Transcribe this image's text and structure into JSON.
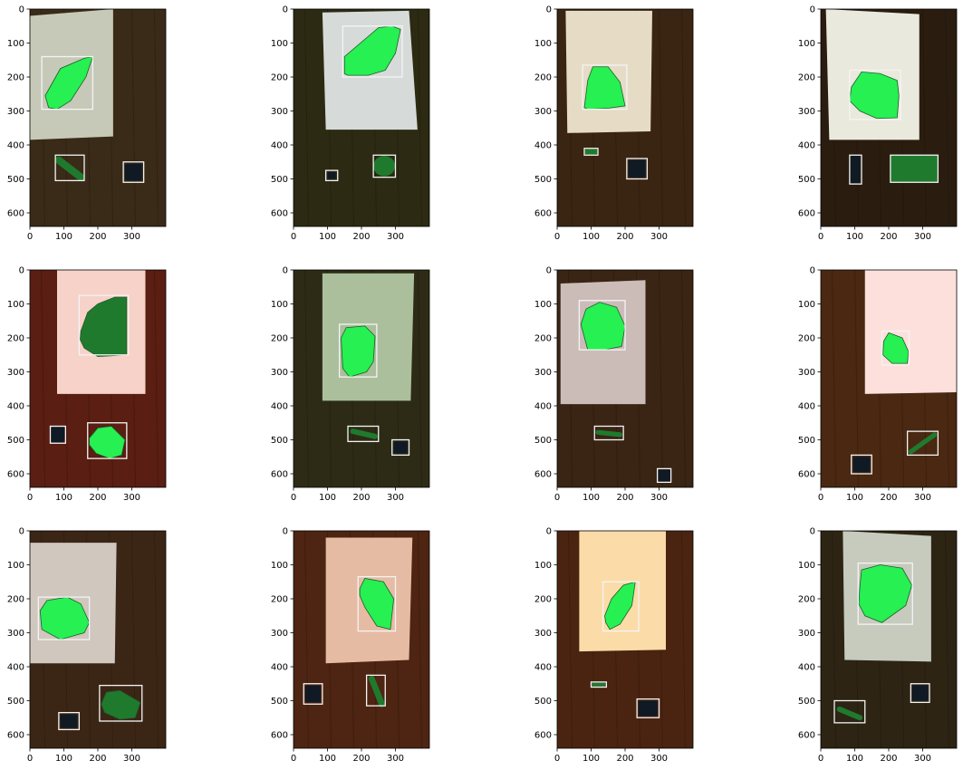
{
  "figure": {
    "x_ticks": [
      "0",
      "100",
      "200",
      "300"
    ],
    "y_ticks": [
      "0",
      "100",
      "200",
      "300",
      "400",
      "500",
      "600"
    ],
    "colors": {
      "background": "#ffffff",
      "bbox": "#f4f4f4",
      "mask_bright": "#27f052",
      "mask_dark": "#1f7a2e"
    }
  },
  "panels": [
    {
      "bg": "#3a2a18",
      "paper": {
        "color": "#c6c9b8"
      },
      "objects": [
        "leaf-large",
        "leaf-stem",
        "coin"
      ]
    },
    {
      "bg": "#2c2a12",
      "paper": {
        "color": "#d6dbd9"
      },
      "objects": [
        "leaf-large",
        "coin",
        "leaf-small"
      ]
    },
    {
      "bg": "#3a2512",
      "paper": {
        "color": "#e6dcc6"
      },
      "objects": [
        "leaf-large",
        "leaf-stem",
        "coin"
      ]
    },
    {
      "bg": "#2a1d10",
      "paper": {
        "color": "#eae9dd"
      },
      "objects": [
        "leaf-large",
        "coin",
        "tag"
      ]
    },
    {
      "bg": "#5a1e12",
      "paper": {
        "color": "#f7d2c8"
      },
      "objects": [
        "leaf-large",
        "coin",
        "leaf-small"
      ]
    },
    {
      "bg": "#2d2b16",
      "paper": {
        "color": "#abbf9c"
      },
      "objects": [
        "leaf-large",
        "leaf-stem",
        "coin"
      ]
    },
    {
      "bg": "#3a2414",
      "paper": {
        "color": "#ccbcb8"
      },
      "objects": [
        "leaf-large",
        "leaf-stem",
        "coin"
      ]
    },
    {
      "bg": "#4a2812",
      "paper": {
        "color": "#fde0dc"
      },
      "objects": [
        "leaf-large",
        "coin",
        "leaf-stem"
      ]
    },
    {
      "bg": "#3b2616",
      "paper": {
        "color": "#d0c7be"
      },
      "objects": [
        "leaf-large",
        "coin",
        "leaf-small"
      ]
    },
    {
      "bg": "#4e2412",
      "paper": {
        "color": "#e6bba4"
      },
      "objects": [
        "leaf-large",
        "coin",
        "leaf-stem"
      ]
    },
    {
      "bg": "#4a2410",
      "paper": {
        "color": "#fbdca8"
      },
      "objects": [
        "leaf-large",
        "leaf-stem",
        "coin"
      ]
    },
    {
      "bg": "#2d2414",
      "paper": {
        "color": "#c6cbbd"
      },
      "objects": [
        "leaf-large",
        "leaf-stem",
        "coin"
      ]
    }
  ]
}
